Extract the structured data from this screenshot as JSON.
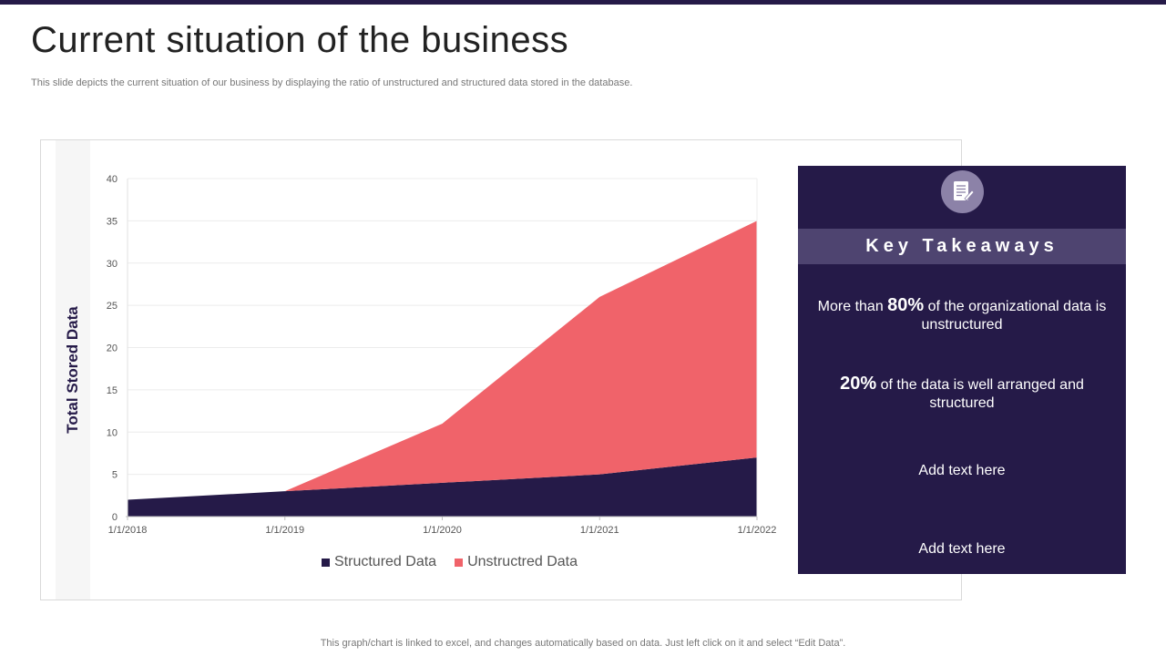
{
  "header": {
    "title": "Current situation of the business",
    "subtitle": "This slide depicts the current situation of our business by displaying the ratio of unstructured and structured data stored in the database."
  },
  "chart_data": {
    "type": "area",
    "stacked": true,
    "title": "",
    "xlabel": "",
    "ylabel": "Total Stored Data",
    "x": [
      "1/1/2018",
      "1/1/2019",
      "1/1/2020",
      "1/1/2021",
      "1/1/2022"
    ],
    "ylim": [
      0,
      40
    ],
    "yticks": [
      0,
      5,
      10,
      15,
      20,
      25,
      30,
      35,
      40
    ],
    "grid": true,
    "legend_position": "bottom",
    "series": [
      {
        "name": "Structured Data",
        "color": "#251a48",
        "values": [
          2,
          3,
          4,
          5,
          7
        ]
      },
      {
        "name": "Unstructred Data",
        "color": "#f0636a",
        "values": [
          0,
          0,
          7,
          21,
          28
        ]
      }
    ]
  },
  "takeaways": {
    "title": "Key Takeaways",
    "icon": "document-icon",
    "item1_pre": "More than ",
    "item1_big": "80%",
    "item1_post": " of the organizational data is unstructured",
    "item2_big": "20%",
    "item2_post": " of the data is well arranged and structured",
    "item3": "Add text here",
    "item4": "Add text here"
  },
  "colors": {
    "brand": "#251a48",
    "accent": "#f0636a",
    "panel_header": "#4e4470"
  },
  "footer": {
    "note": "This graph/chart is linked to excel,  and changes automatically based on data. Just left click on it and select “Edit Data”."
  }
}
